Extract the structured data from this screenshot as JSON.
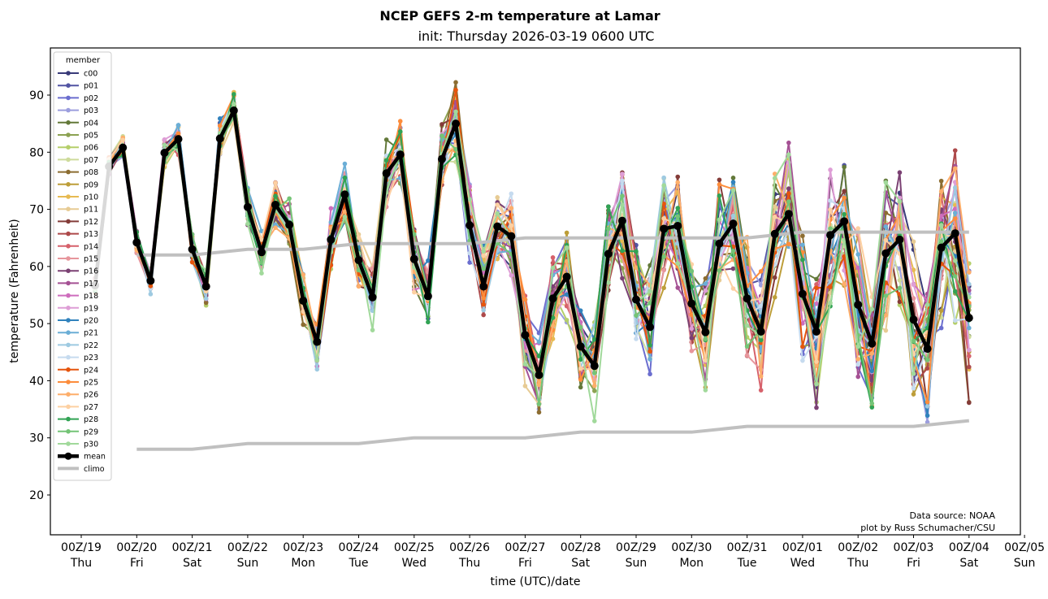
{
  "chart_data": {
    "type": "line",
    "title": "NCEP GEFS 2-m temperature at Lamar",
    "subtitle": "init: Thursday 2026-03-19 0600 UTC",
    "xlabel": "time (UTC)/date",
    "ylabel": "temperature (Fahrenheit)",
    "ylim": [
      13,
      98
    ],
    "xlim_hours": [
      -6,
      408
    ],
    "grid": false,
    "legend": {
      "title": "member",
      "placement": "top-left"
    },
    "yticks": [
      20,
      30,
      40,
      50,
      60,
      70,
      80,
      90
    ],
    "xticks": [
      {
        "line1": "00Z/19",
        "line2": "Thu"
      },
      {
        "line1": "00Z/20",
        "line2": "Fri"
      },
      {
        "line1": "00Z/21",
        "line2": "Sat"
      },
      {
        "line1": "00Z/22",
        "line2": "Sun"
      },
      {
        "line1": "00Z/23",
        "line2": "Mon"
      },
      {
        "line1": "00Z/24",
        "line2": "Tue"
      },
      {
        "line1": "00Z/25",
        "line2": "Wed"
      },
      {
        "line1": "00Z/26",
        "line2": "Thu"
      },
      {
        "line1": "00Z/27",
        "line2": "Fri"
      },
      {
        "line1": "00Z/28",
        "line2": "Sat"
      },
      {
        "line1": "00Z/29",
        "line2": "Sun"
      },
      {
        "line1": "00Z/30",
        "line2": "Mon"
      },
      {
        "line1": "00Z/31",
        "line2": "Tue"
      },
      {
        "line1": "00Z/01",
        "line2": "Wed"
      },
      {
        "line1": "00Z/02",
        "line2": "Thu"
      },
      {
        "line1": "00Z/03",
        "line2": "Fri"
      },
      {
        "line1": "00Z/04",
        "line2": "Sat"
      },
      {
        "line1": "00Z/05",
        "line2": "Sun"
      }
    ],
    "time_step_hours": 6,
    "start_hour": 6,
    "mean": {
      "name": "mean",
      "color": "#000000",
      "values": [
        56.7,
        77.5,
        80.8,
        64.2,
        57.5,
        79.9,
        82.3,
        63.0,
        56.5,
        82.4,
        87.3,
        70.4,
        62.5,
        70.8,
        67.3,
        54.0,
        46.8,
        64.7,
        72.6,
        61.1,
        54.6,
        76.3,
        79.6,
        61.3,
        54.8,
        78.8,
        85.0,
        67.2,
        56.5,
        67.0,
        65.3,
        48.0,
        41.0,
        54.4,
        58.2,
        46.0,
        42.6,
        62.2,
        68.0,
        54.2,
        49.4,
        66.6,
        67.1,
        53.5,
        48.5,
        64.0,
        67.5,
        54.4,
        48.6,
        65.7,
        69.2,
        55.2,
        48.6,
        65.5,
        67.9,
        53.3,
        46.5,
        62.3,
        64.7,
        50.7,
        45.6,
        63.3,
        65.8,
        51.0
      ]
    },
    "climo": {
      "name": "climo",
      "color": "#c0c0c0",
      "high": {
        "start_hour": 24,
        "values_daily": [
          62,
          62,
          63,
          63,
          64,
          64,
          64,
          65,
          65,
          65,
          65,
          65,
          66,
          66,
          66,
          66
        ]
      },
      "low": {
        "start_hour": 24,
        "values_daily": [
          28,
          28,
          29,
          29,
          29,
          30,
          30,
          30,
          31,
          31,
          31,
          32,
          32,
          32,
          32,
          33
        ]
      }
    },
    "members": [
      {
        "name": "c00",
        "color": "#393b79"
      },
      {
        "name": "p01",
        "color": "#5254a3"
      },
      {
        "name": "p02",
        "color": "#6b6ecf"
      },
      {
        "name": "p03",
        "color": "#9c9ede"
      },
      {
        "name": "p04",
        "color": "#637939"
      },
      {
        "name": "p05",
        "color": "#8ca252"
      },
      {
        "name": "p06",
        "color": "#b5cf6b"
      },
      {
        "name": "p07",
        "color": "#cedb9c"
      },
      {
        "name": "p08",
        "color": "#8c6d31"
      },
      {
        "name": "p09",
        "color": "#bd9e39"
      },
      {
        "name": "p10",
        "color": "#e7ba52"
      },
      {
        "name": "p11",
        "color": "#e7cb94"
      },
      {
        "name": "p12",
        "color": "#843c39"
      },
      {
        "name": "p13",
        "color": "#ad494a"
      },
      {
        "name": "p14",
        "color": "#d6616b"
      },
      {
        "name": "p15",
        "color": "#e7969c"
      },
      {
        "name": "p16",
        "color": "#7b4173"
      },
      {
        "name": "p17",
        "color": "#a55194"
      },
      {
        "name": "p18",
        "color": "#ce6dbd"
      },
      {
        "name": "p19",
        "color": "#de9ed6"
      },
      {
        "name": "p20",
        "color": "#3182bd"
      },
      {
        "name": "p21",
        "color": "#6baed6"
      },
      {
        "name": "p22",
        "color": "#9ecae1"
      },
      {
        "name": "p23",
        "color": "#c6dbef"
      },
      {
        "name": "p24",
        "color": "#e6550d"
      },
      {
        "name": "p25",
        "color": "#fd8d3c"
      },
      {
        "name": "p26",
        "color": "#fdae6b"
      },
      {
        "name": "p27",
        "color": "#fdd0a2"
      },
      {
        "name": "p28",
        "color": "#31a354"
      },
      {
        "name": "p29",
        "color": "#74c476"
      },
      {
        "name": "p30",
        "color": "#a1d99b"
      }
    ],
    "member_spread_note": "member values scatter around the mean; spread grows with lead time"
  },
  "annotations": {
    "source": "Data source: NOAA",
    "credit": "plot by Russ Schumacher/CSU"
  }
}
